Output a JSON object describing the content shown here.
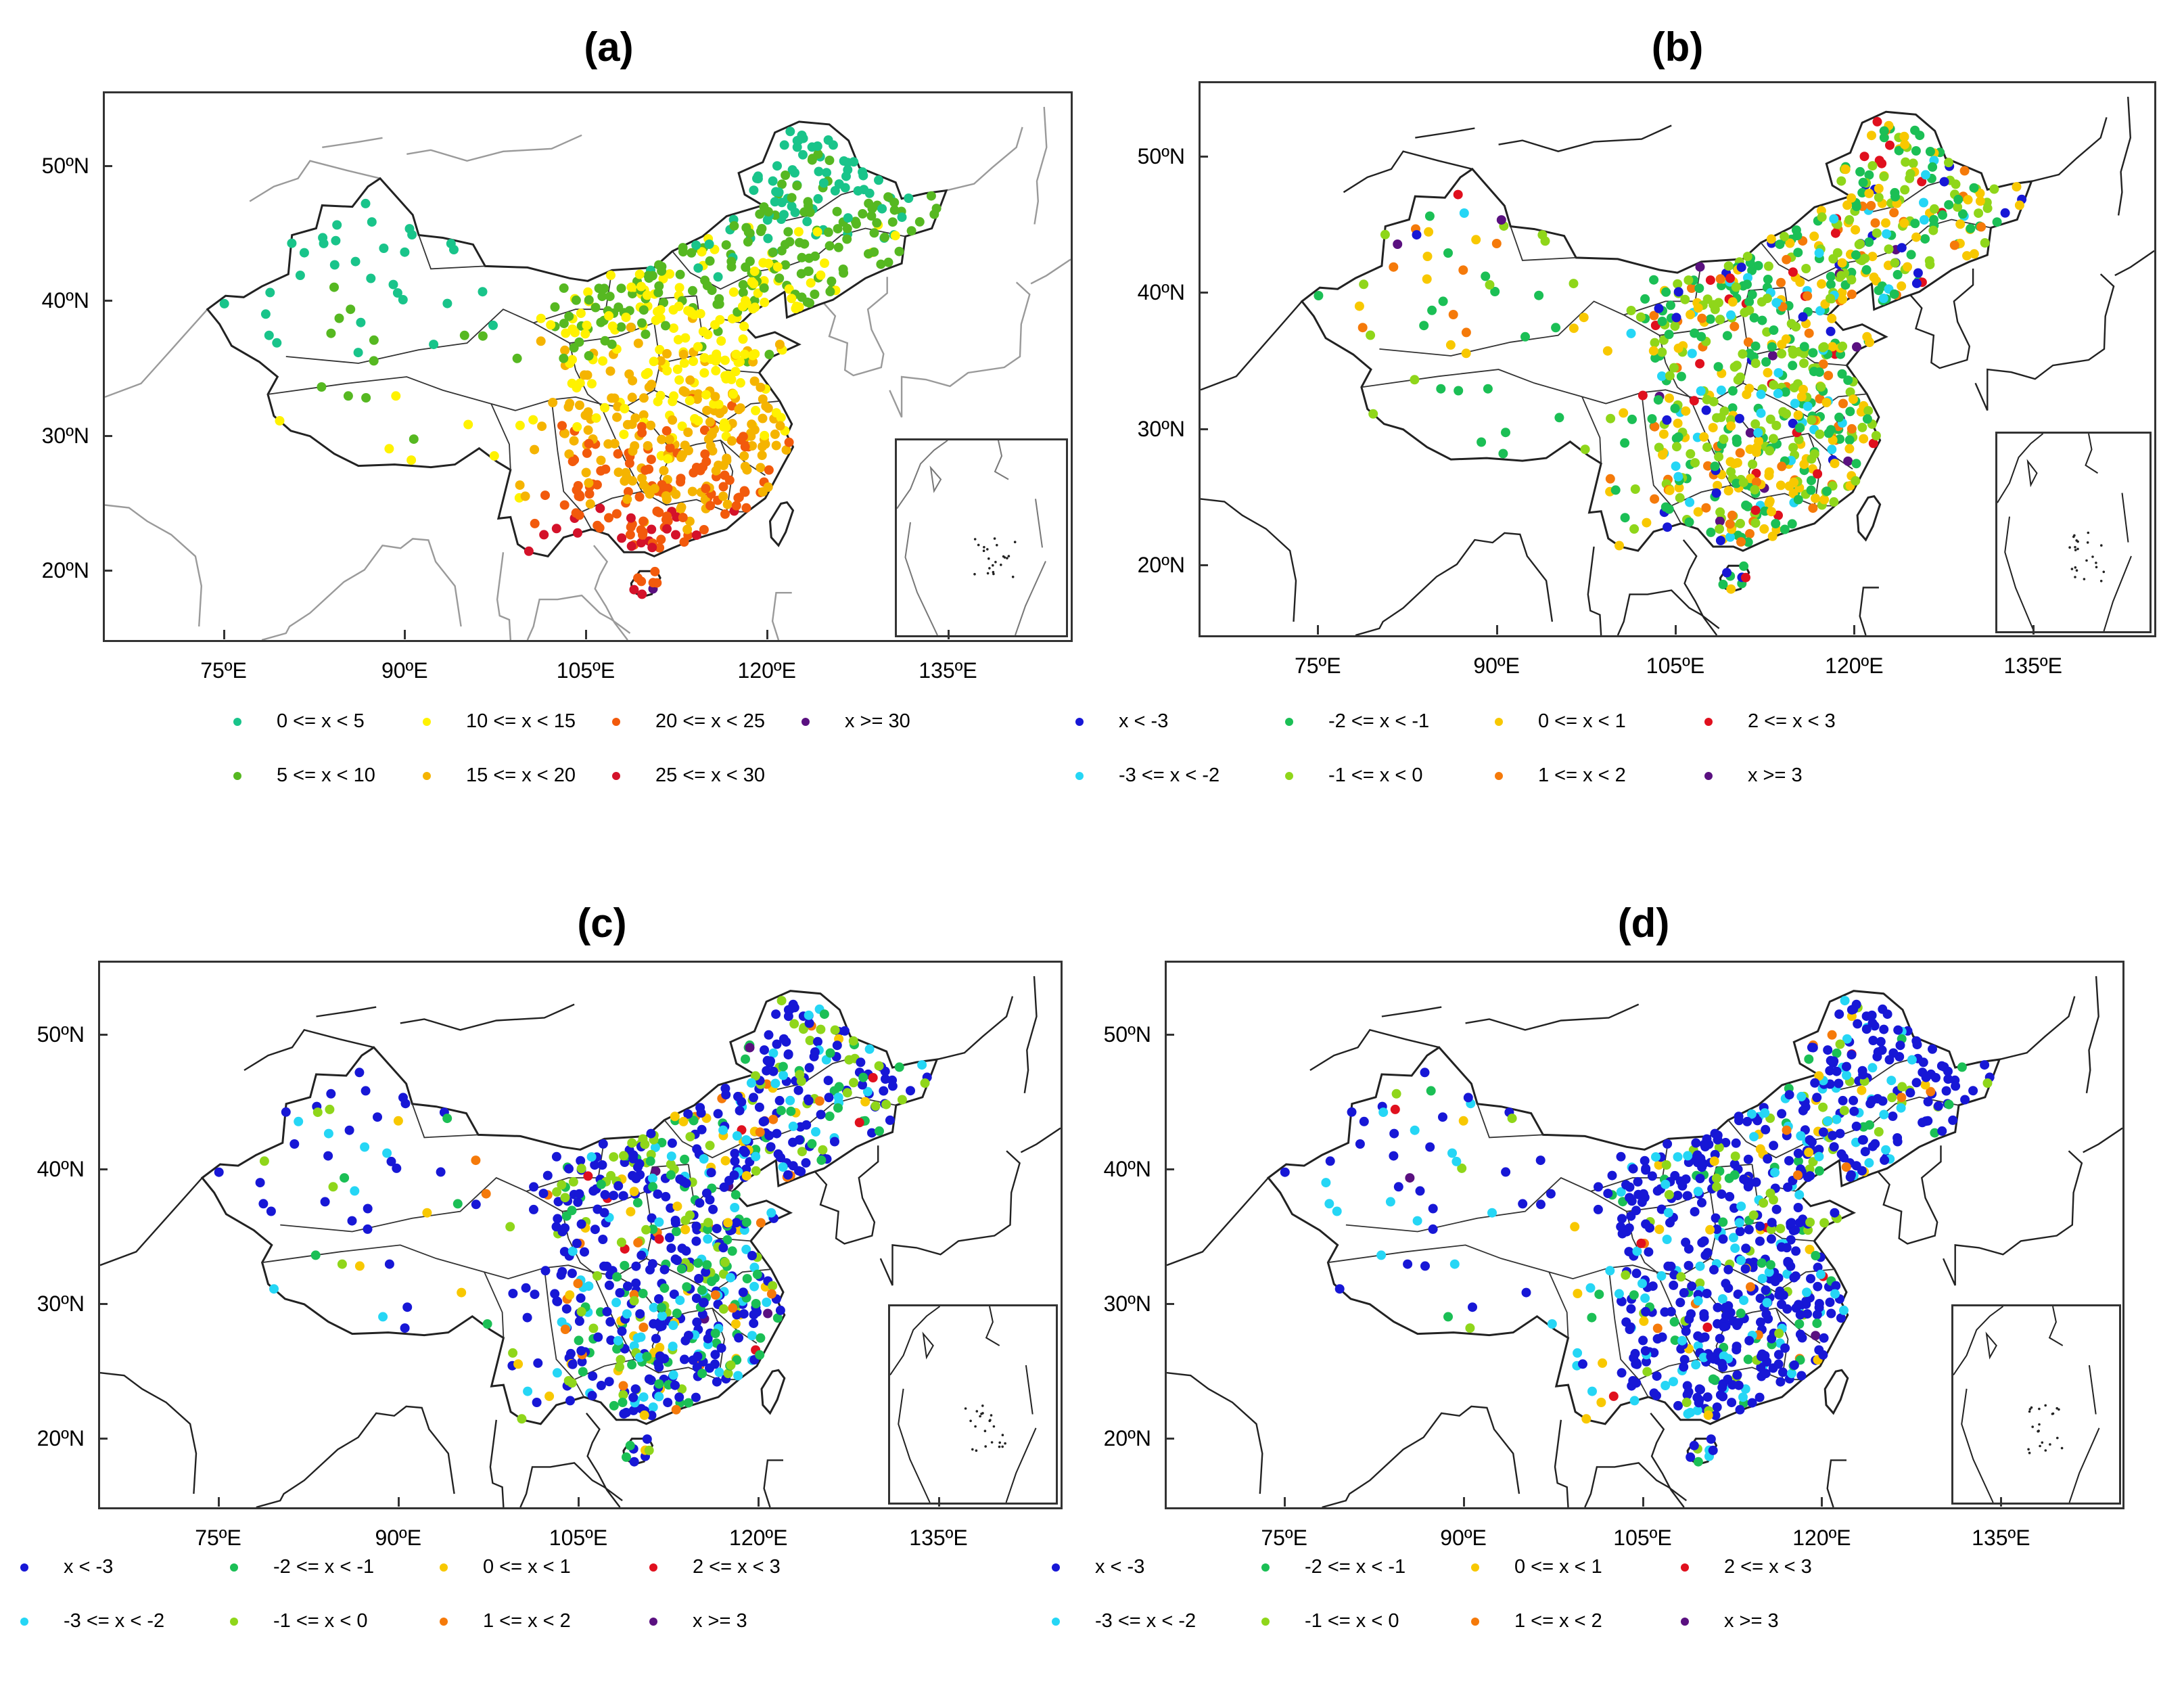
{
  "axes": {
    "lat_labels": [
      "50ºN",
      "40ºN",
      "30ºN",
      "20ºN"
    ],
    "lon_labels": [
      "75ºE",
      "90ºE",
      "105ºE",
      "120ºE",
      "135ºE"
    ]
  },
  "legend_a": [
    {
      "label": "0 <= x < 5",
      "color": "#19c48a"
    },
    {
      "label": "5 <= x < 10",
      "color": "#56b821"
    },
    {
      "label": "10 <= x < 15",
      "color": "#fff200"
    },
    {
      "label": "15 <= x < 20",
      "color": "#f5b400"
    },
    {
      "label": "20 <= x < 25",
      "color": "#f25a0c"
    },
    {
      "label": "25 <= x < 30",
      "color": "#d4122a"
    },
    {
      "label": "x >= 30",
      "color": "#5a1080"
    }
  ],
  "legend_b": [
    {
      "label": "x < -3",
      "color": "#1717d6"
    },
    {
      "label": "-3 <= x < -2",
      "color": "#25d6f5"
    },
    {
      "label": "-2 <= x < -1",
      "color": "#1bbf55"
    },
    {
      "label": "-1 <= x < 0",
      "color": "#8fd61a"
    },
    {
      "label": "0 <= x < 1",
      "color": "#f8c800"
    },
    {
      "label": "1 <= x < 2",
      "color": "#f57a0a"
    },
    {
      "label": "2 <= x < 3",
      "color": "#e0101e"
    },
    {
      "label": "x >= 3",
      "color": "#5a1080"
    }
  ],
  "panels": [
    {
      "title": "(a)",
      "legend": "a",
      "mix": [
        0.03,
        0.22,
        0.3,
        0.22,
        0.17,
        0.05,
        0.01
      ],
      "south_bias": true
    },
    {
      "title": "(b)",
      "legend": "b",
      "mix": [
        0.05,
        0.08,
        0.26,
        0.26,
        0.2,
        0.09,
        0.04,
        0.02
      ],
      "south_bias": false
    },
    {
      "title": "(c)",
      "legend": "b",
      "mix": [
        0.48,
        0.14,
        0.14,
        0.12,
        0.07,
        0.03,
        0.01,
        0.01
      ],
      "south_bias": false
    },
    {
      "title": "(d)",
      "legend": "b",
      "mix": [
        0.62,
        0.16,
        0.08,
        0.07,
        0.04,
        0.02,
        0.005,
        0.005
      ],
      "south_bias": false
    }
  ]
}
